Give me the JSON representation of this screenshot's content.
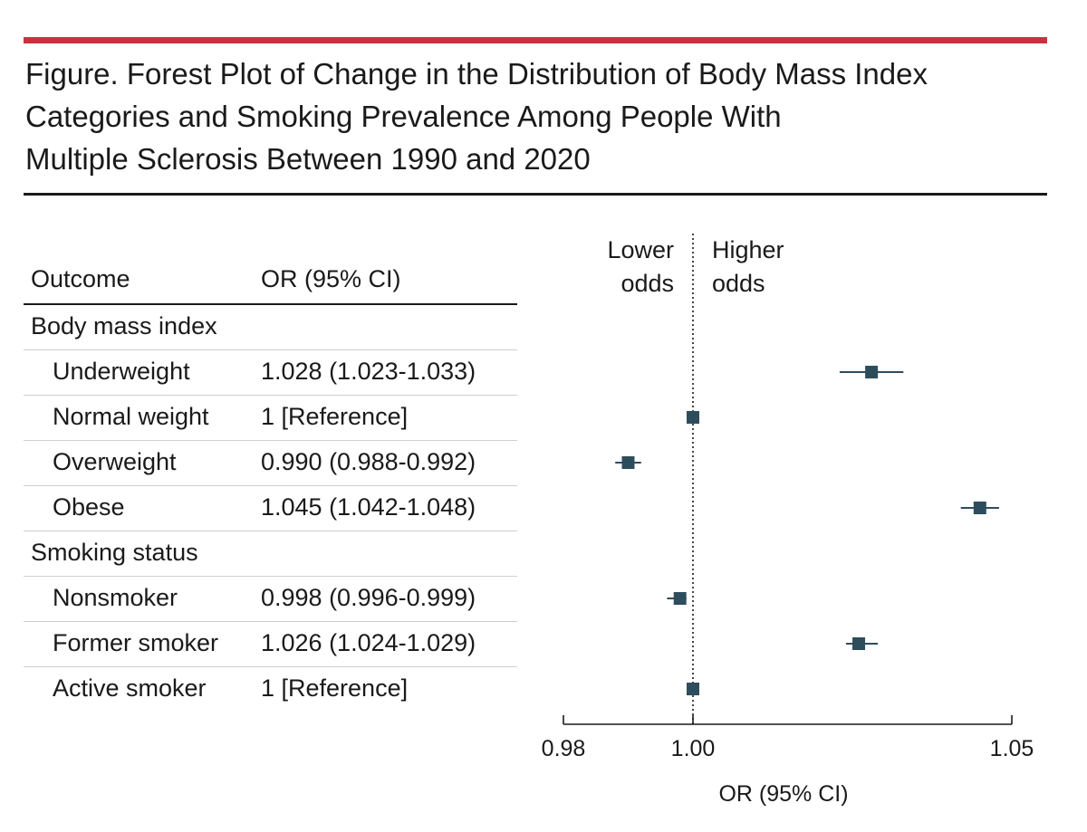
{
  "figure": {
    "title_lines": [
      "Figure. Forest Plot of Change in the Distribution of Body Mass Index",
      "Categories and Smoking Prevalence Among People With",
      "Multiple Sclerosis Between 1990 and 2020"
    ],
    "accent_color": "#c8323f",
    "marker_color": "#2e4d5c"
  },
  "table": {
    "headers": {
      "outcome": "Outcome",
      "or": "OR (95% CI)"
    },
    "rows": [
      {
        "outcome": "Body mass index",
        "or": "",
        "indent": false
      },
      {
        "outcome": "Underweight",
        "or": "1.028 (1.023-1.033)",
        "indent": true
      },
      {
        "outcome": "Normal weight",
        "or": "1 [Reference]",
        "indent": true
      },
      {
        "outcome": "Overweight",
        "or": "0.990 (0.988-0.992)",
        "indent": true
      },
      {
        "outcome": "Obese",
        "or": "1.045 (1.042-1.048)",
        "indent": true
      },
      {
        "outcome": "Smoking status",
        "or": "",
        "indent": false
      },
      {
        "outcome": "Nonsmoker",
        "or": "0.998 (0.996-0.999)",
        "indent": true
      },
      {
        "outcome": "Former smoker",
        "or": "1.026 (1.024-1.029)",
        "indent": true
      },
      {
        "outcome": "Active smoker",
        "or": "1 [Reference]",
        "indent": true
      }
    ]
  },
  "chart_data": {
    "type": "scatter",
    "subtype": "forest-plot",
    "xlabel": "OR (95% CI)",
    "xlim": [
      0.98,
      1.05
    ],
    "xticks": [
      0.98,
      1.0,
      1.05
    ],
    "xtick_labels": [
      "0.98",
      "1.00",
      "1.05"
    ],
    "reference_line": 1.0,
    "direction_labels": {
      "lower": [
        "Lower",
        "odds"
      ],
      "higher": [
        "Higher",
        "odds"
      ]
    },
    "points": [
      {
        "row": 1,
        "label": "Underweight",
        "or": 1.028,
        "lo": 1.023,
        "hi": 1.033
      },
      {
        "row": 2,
        "label": "Normal weight",
        "or": 1.0,
        "lo": 1.0,
        "hi": 1.0
      },
      {
        "row": 3,
        "label": "Overweight",
        "or": 0.99,
        "lo": 0.988,
        "hi": 0.992
      },
      {
        "row": 4,
        "label": "Obese",
        "or": 1.045,
        "lo": 1.042,
        "hi": 1.048
      },
      {
        "row": 6,
        "label": "Nonsmoker",
        "or": 0.998,
        "lo": 0.996,
        "hi": 0.999
      },
      {
        "row": 7,
        "label": "Former smoker",
        "or": 1.026,
        "lo": 1.024,
        "hi": 1.029
      },
      {
        "row": 8,
        "label": "Active smoker",
        "or": 1.0,
        "lo": 1.0,
        "hi": 1.0
      }
    ]
  }
}
